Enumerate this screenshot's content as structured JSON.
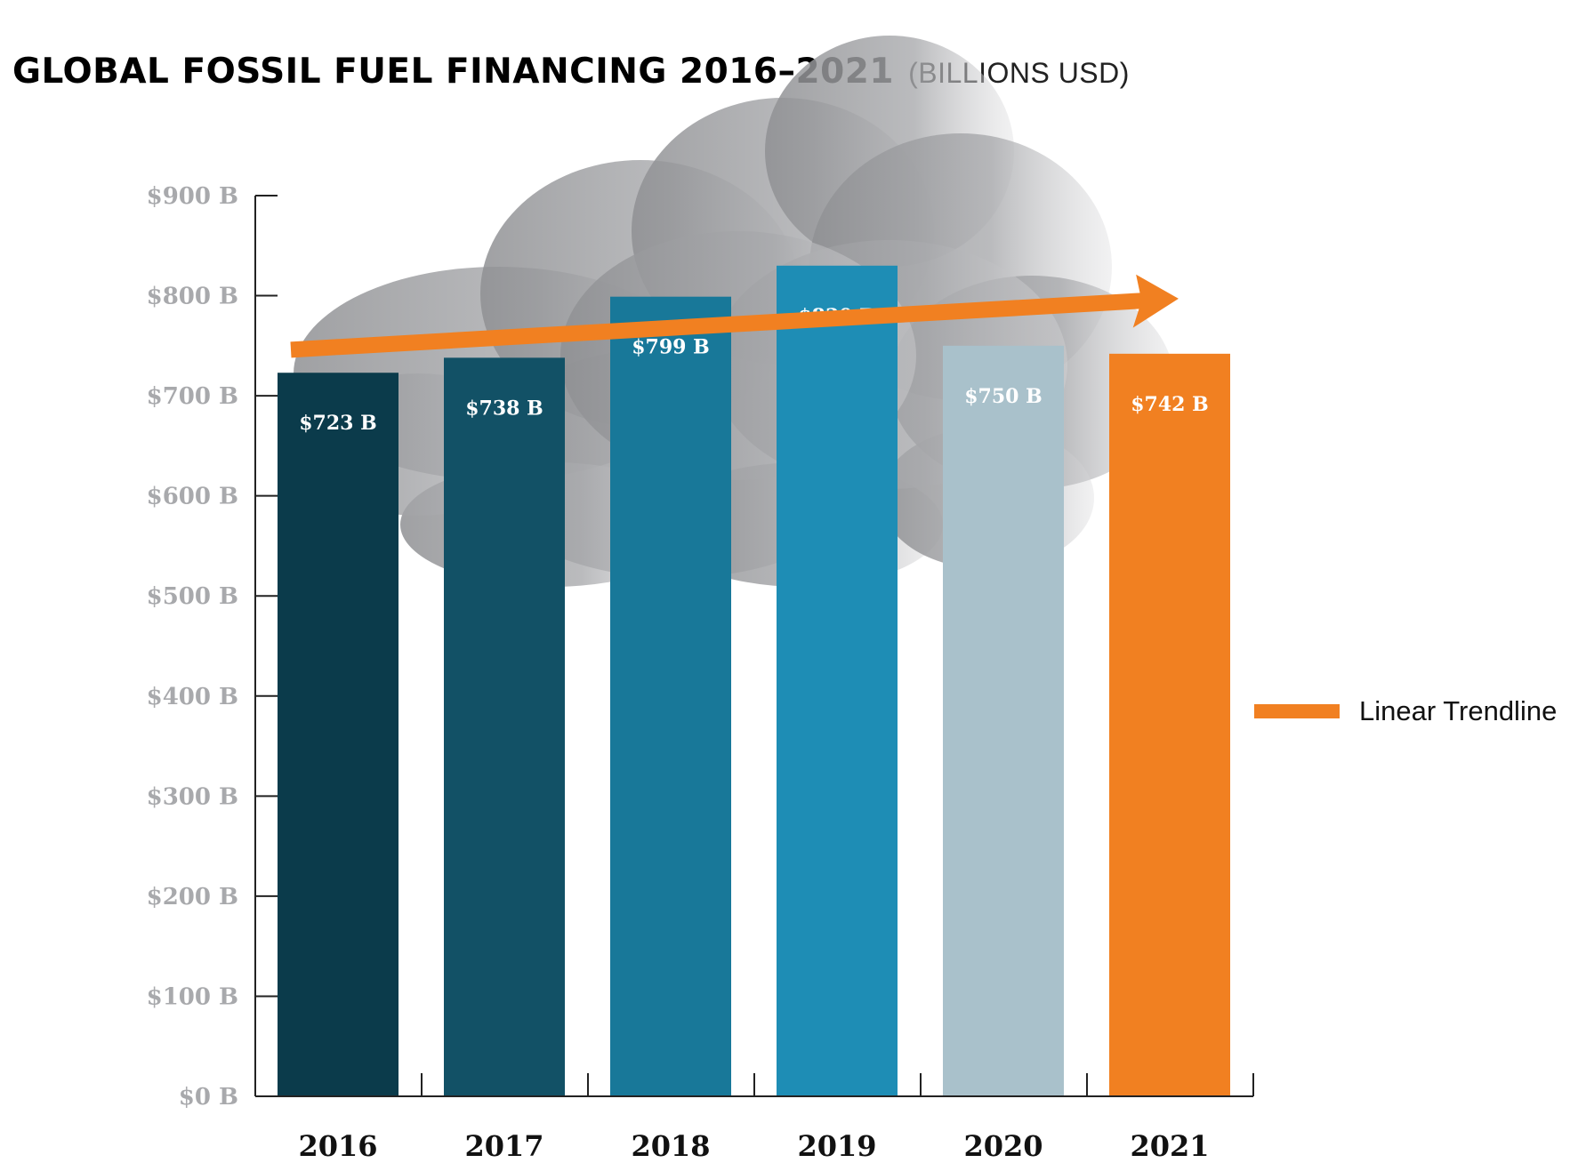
{
  "title": "GLOBAL FOSSIL FUEL FINANCING 2016–2021",
  "subtitle": "(BILLIONS USD)",
  "colors": {
    "bar_2016": "#0b3b4b",
    "bar_2017": "#125166",
    "bar_2018": "#187899",
    "bar_2019": "#1e8db5",
    "bar_2020": "#a9c1cb",
    "bar_2021": "#f18021",
    "trendline": "#f18021",
    "axis": "#222222",
    "ytick": "#a8a9ac",
    "smoke": "#9c9da0"
  },
  "legend": {
    "label": "Linear Trendline",
    "color": "#f18021"
  },
  "chart_data": {
    "type": "bar",
    "title": "GLOBAL FOSSIL FUEL FINANCING 2016–2021",
    "subtitle": "(BILLIONS USD)",
    "categories": [
      "2016",
      "2017",
      "2018",
      "2019",
      "2020",
      "2021"
    ],
    "values": [
      723,
      738,
      799,
      830,
      750,
      742
    ],
    "data_labels": [
      "$723 B",
      "$738 B",
      "$799 B",
      "$830 B",
      "$750 B",
      "$742 B"
    ],
    "bar_colors": [
      "#0b3b4b",
      "#125166",
      "#187899",
      "#1e8db5",
      "#a9c1cb",
      "#f18021"
    ],
    "ylim": [
      0,
      900
    ],
    "yticks": [
      0,
      100,
      200,
      300,
      400,
      500,
      600,
      700,
      800,
      900
    ],
    "ytick_labels": [
      "$0 B",
      "$100 B",
      "$200 B",
      "$300 B",
      "$400 B",
      "$500 B",
      "$600 B",
      "$700 B",
      "$800 B",
      "$900 B"
    ],
    "trendline": {
      "name": "Linear Trendline",
      "start": 746,
      "end": 795
    },
    "legend": "right",
    "grid": false
  }
}
